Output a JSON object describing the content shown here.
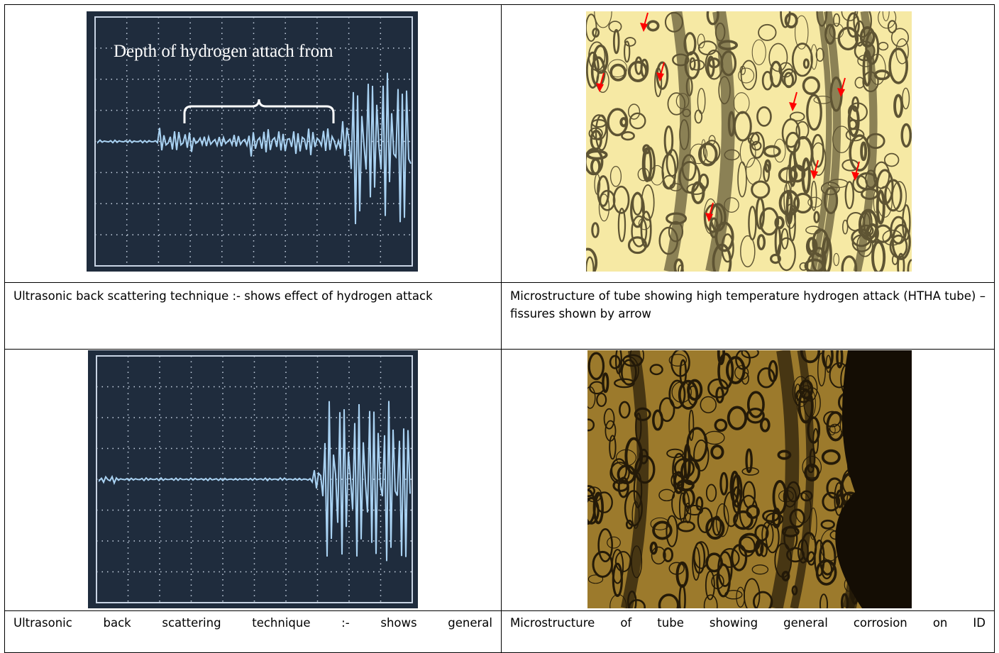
{
  "table": {
    "image_annotation": "Depth of hydrogen attach from",
    "captions": [
      [
        "Ultrasonic back scattering technique :- shows effect of hydrogen attack",
        "Microstructure of tube showing high temperature hydrogen attack (HTHA tube) – fissures shown by arrow"
      ],
      [
        "Ultrasonic back scattering technique :- shows general",
        "Microstructure of tube showing general corrosion on ID"
      ]
    ]
  }
}
